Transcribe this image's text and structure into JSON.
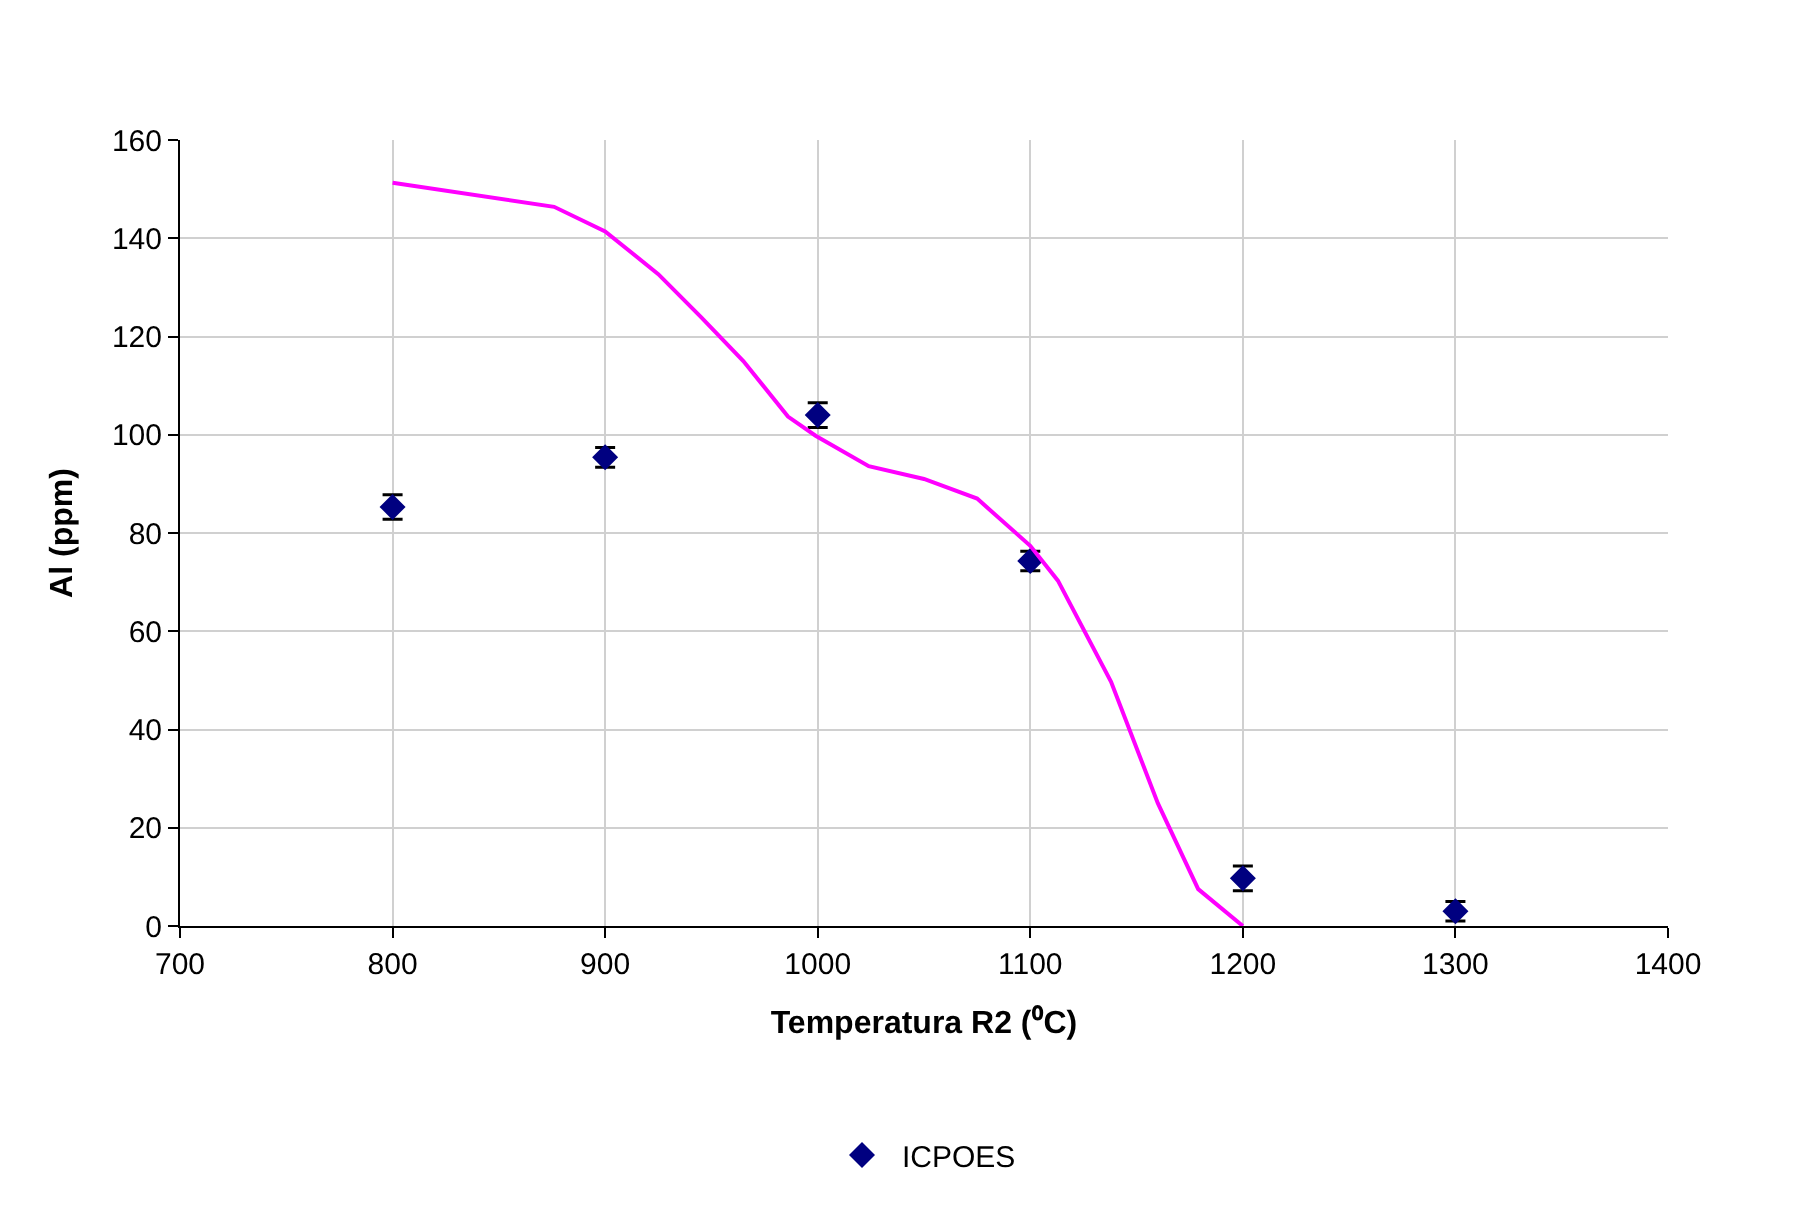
{
  "chart_data": {
    "type": "scatter",
    "xlabel": "Temperatura R2 (⁰C)",
    "ylabel": "Al (ppm)",
    "xlim": [
      700,
      1400
    ],
    "xticks": [
      700,
      800,
      900,
      1000,
      1100,
      1200,
      1300,
      1400
    ],
    "ylim": [
      0,
      160
    ],
    "yticks": [
      0,
      20,
      40,
      60,
      80,
      100,
      120,
      140,
      160
    ],
    "grid": true,
    "legend": "bottom",
    "marker": "diamond",
    "series": [
      {
        "name": "ICPOES",
        "color": "#000080",
        "x": [
          800,
          900,
          1000,
          1100,
          1200,
          1300
        ],
        "values": [
          85.3,
          95.4,
          104,
          74.3,
          9.7,
          3
        ],
        "errors": [
          2.5,
          2,
          2.5,
          2,
          2.5,
          2
        ]
      },
      {
        "color": "#ff00ff",
        "type": "line",
        "marker": "none",
        "x": [
          800,
          876,
          900,
          925,
          945,
          965,
          986,
          999,
          1024,
          1050,
          1075,
          1100,
          1113,
          1138,
          1160,
          1179,
          1200
        ],
        "values": [
          151.3,
          146.4,
          141.4,
          132.7,
          124,
          115,
          103.7,
          99.8,
          93.6,
          91,
          87,
          77.4,
          70.3,
          49.7,
          25,
          7.5,
          0
        ]
      }
    ]
  }
}
